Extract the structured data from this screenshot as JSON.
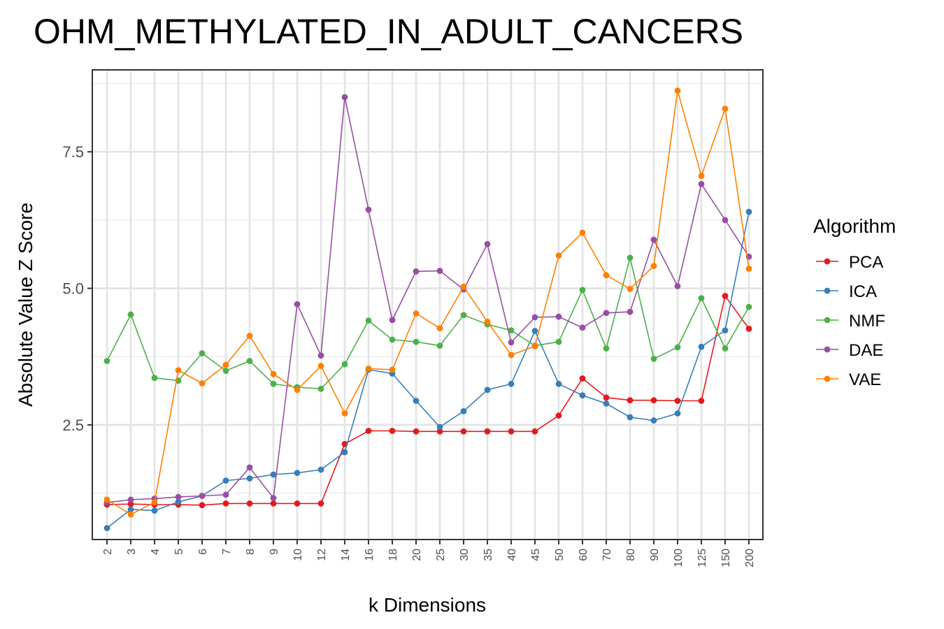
{
  "chart_data": {
    "type": "line",
    "title": "OHM_METHYLATED_IN_ADULT_CANCERS",
    "xlabel": "k Dimensions",
    "ylabel": "Absolute Value Z Score",
    "categories": [
      "2",
      "3",
      "4",
      "5",
      "6",
      "7",
      "8",
      "9",
      "10",
      "12",
      "14",
      "16",
      "18",
      "20",
      "25",
      "30",
      "35",
      "40",
      "45",
      "50",
      "60",
      "70",
      "80",
      "90",
      "100",
      "125",
      "150",
      "200"
    ],
    "ylim": [
      0.4,
      9.0
    ],
    "yticks": [
      2.5,
      5.0,
      7.5
    ],
    "ytick_labels": [
      "2.5",
      "5.0",
      "7.5"
    ],
    "grid": true,
    "legend": {
      "title": "Algorithm",
      "placement": "right"
    },
    "series": [
      {
        "name": "PCA",
        "color": "#E41A1C",
        "values": [
          1.04,
          1.05,
          1.04,
          1.04,
          1.03,
          1.06,
          1.06,
          1.06,
          1.06,
          1.06,
          2.15,
          2.39,
          2.39,
          2.38,
          2.38,
          2.38,
          2.38,
          2.38,
          2.38,
          2.67,
          3.35,
          3.0,
          2.95,
          2.95,
          2.94,
          2.94,
          4.86,
          4.26
        ]
      },
      {
        "name": "ICA",
        "color": "#377EB8",
        "values": [
          0.61,
          0.95,
          0.93,
          1.09,
          1.2,
          1.48,
          1.52,
          1.59,
          1.62,
          1.68,
          2.0,
          3.51,
          3.44,
          2.94,
          2.46,
          2.75,
          3.14,
          3.25,
          4.22,
          3.25,
          3.04,
          2.89,
          2.64,
          2.58,
          2.71,
          3.93,
          4.23,
          6.4
        ]
      },
      {
        "name": "NMF",
        "color": "#4DAF4A",
        "values": [
          3.67,
          4.52,
          3.36,
          3.31,
          3.81,
          3.49,
          3.67,
          3.25,
          3.19,
          3.16,
          3.61,
          4.41,
          4.06,
          4.02,
          3.95,
          4.51,
          4.34,
          4.23,
          3.95,
          4.02,
          4.97,
          3.9,
          5.56,
          3.71,
          3.92,
          4.82,
          3.9,
          4.66
        ]
      },
      {
        "name": "DAE",
        "color": "#984EA3",
        "values": [
          1.08,
          1.13,
          1.15,
          1.18,
          1.2,
          1.22,
          1.72,
          1.16,
          4.71,
          3.77,
          8.5,
          6.44,
          4.42,
          5.31,
          5.32,
          4.98,
          5.81,
          4.01,
          4.47,
          4.48,
          4.28,
          4.55,
          4.57,
          5.89,
          5.04,
          6.91,
          6.25,
          5.58
        ]
      },
      {
        "name": "VAE",
        "color": "#FF7F00",
        "values": [
          1.13,
          0.86,
          1.08,
          3.5,
          3.26,
          3.6,
          4.13,
          3.43,
          3.14,
          3.58,
          2.71,
          3.53,
          3.51,
          4.54,
          4.27,
          5.03,
          4.39,
          3.78,
          3.94,
          5.6,
          6.02,
          5.24,
          4.99,
          5.41,
          8.62,
          7.06,
          8.29,
          5.36
        ]
      }
    ]
  }
}
